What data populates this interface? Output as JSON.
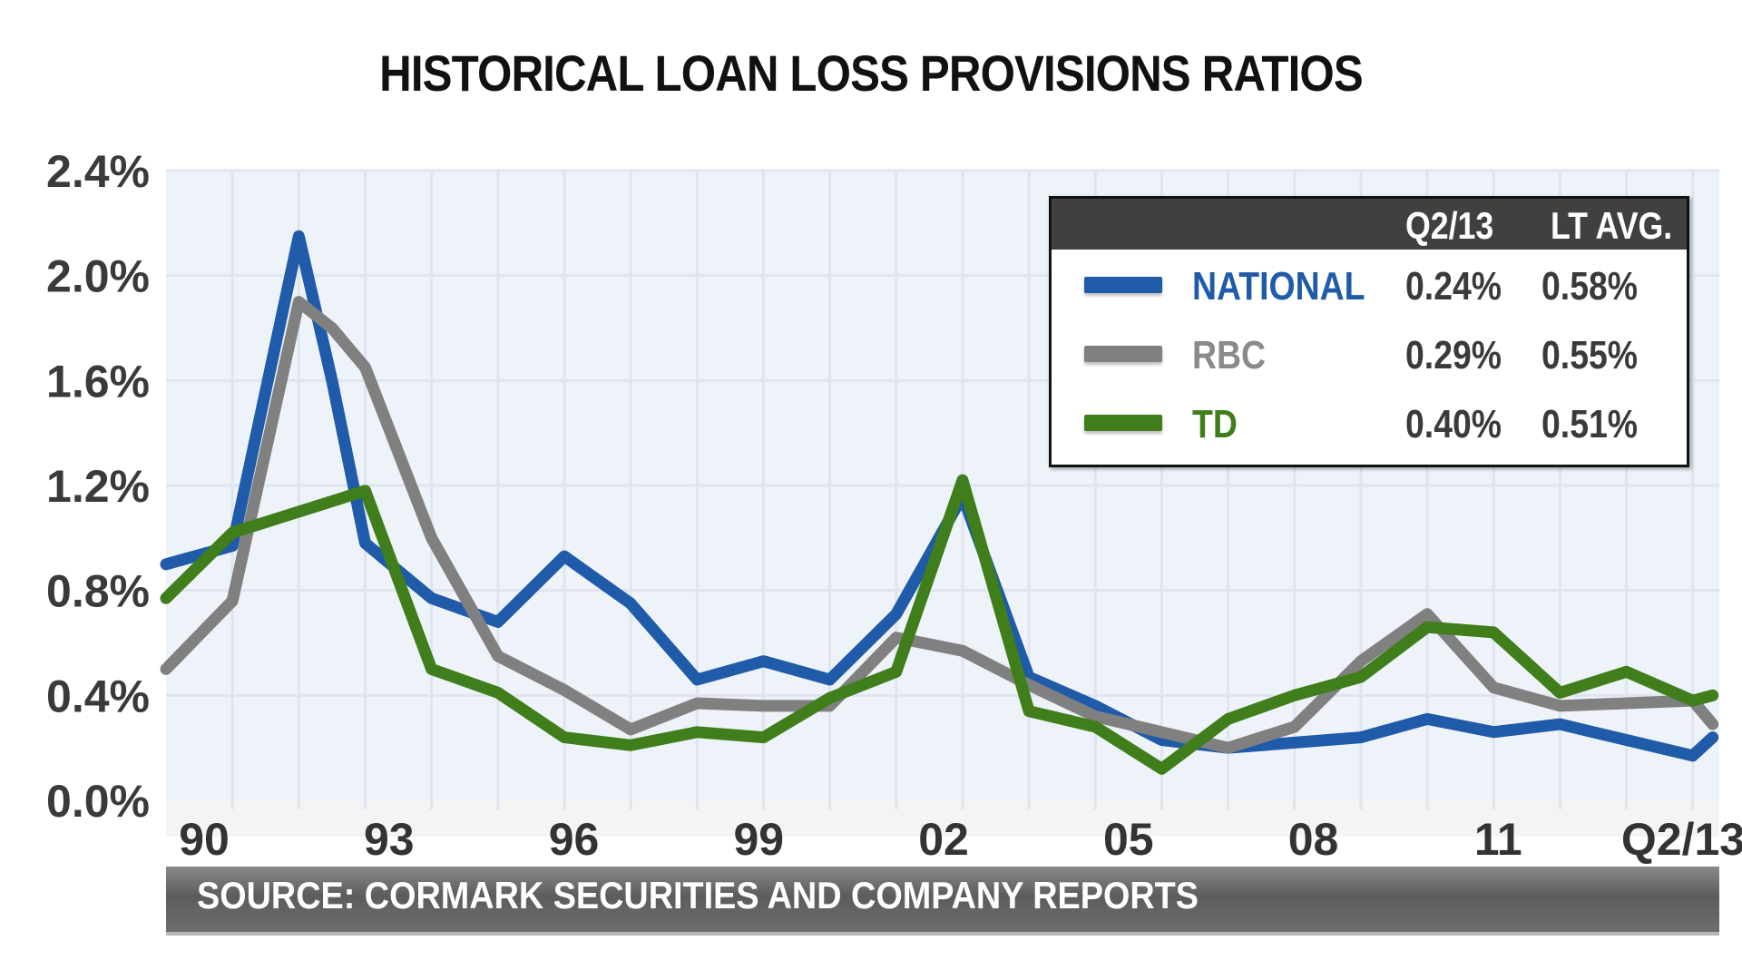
{
  "chart_data": {
    "type": "line",
    "title": "HISTORICAL LOAN LOSS PROVISIONS RATIOS",
    "xlabel": "",
    "ylabel": "",
    "x_tick_labels": [
      "90",
      "93",
      "96",
      "99",
      "02",
      "05",
      "08",
      "11",
      "Q2/13"
    ],
    "y_tick_labels": [
      "0.0%",
      "0.4%",
      "0.8%",
      "1.2%",
      "1.6%",
      "2.0%",
      "2.4%"
    ],
    "ylim": [
      0,
      2.4
    ],
    "y_unit": "%",
    "grid": true,
    "legend_placement": "top-right",
    "x": [
      1990,
      1991,
      1992,
      1992.5,
      1993,
      1994,
      1995,
      1996,
      1997,
      1998,
      1999,
      2000,
      2001,
      2002,
      2003,
      2004,
      2005,
      2006,
      2007,
      2008,
      2009,
      2010,
      2011,
      2012,
      2013,
      2013.3
    ],
    "series": [
      {
        "name": "NATIONAL",
        "color": "#1f5ba8",
        "q2_13": "0.24%",
        "lt_avg": "0.58%",
        "values": [
          0.9,
          0.97,
          2.15,
          1.6,
          0.98,
          0.77,
          0.68,
          0.93,
          0.75,
          0.46,
          0.53,
          0.46,
          0.71,
          1.16,
          0.47,
          0.36,
          0.23,
          0.2,
          0.22,
          0.24,
          0.31,
          0.26,
          0.29,
          0.23,
          0.17,
          0.24
        ]
      },
      {
        "name": "RBC",
        "color": "#808080",
        "q2_13": "0.29%",
        "lt_avg": "0.55%",
        "values": [
          0.5,
          0.76,
          1.9,
          1.8,
          1.65,
          1.0,
          0.55,
          0.42,
          0.27,
          0.37,
          0.36,
          0.36,
          0.62,
          0.57,
          0.44,
          0.32,
          0.26,
          0.2,
          0.28,
          0.53,
          0.71,
          0.43,
          0.36,
          0.37,
          0.38,
          0.29
        ]
      },
      {
        "name": "TD",
        "color": "#3f7e1a",
        "q2_13": "0.40%",
        "lt_avg": "0.51%",
        "values": [
          0.77,
          1.02,
          1.1,
          1.14,
          1.18,
          0.5,
          0.41,
          0.24,
          0.21,
          0.26,
          0.24,
          0.39,
          0.49,
          1.22,
          0.34,
          0.28,
          0.12,
          0.31,
          0.4,
          0.47,
          0.66,
          0.64,
          0.41,
          0.49,
          0.38,
          0.4
        ]
      }
    ],
    "legend_table": {
      "col_q2": "Q2/13",
      "col_avg": "LT AVG."
    },
    "source": "SOURCE: CORMARK SECURITIES AND COMPANY REPORTS"
  }
}
